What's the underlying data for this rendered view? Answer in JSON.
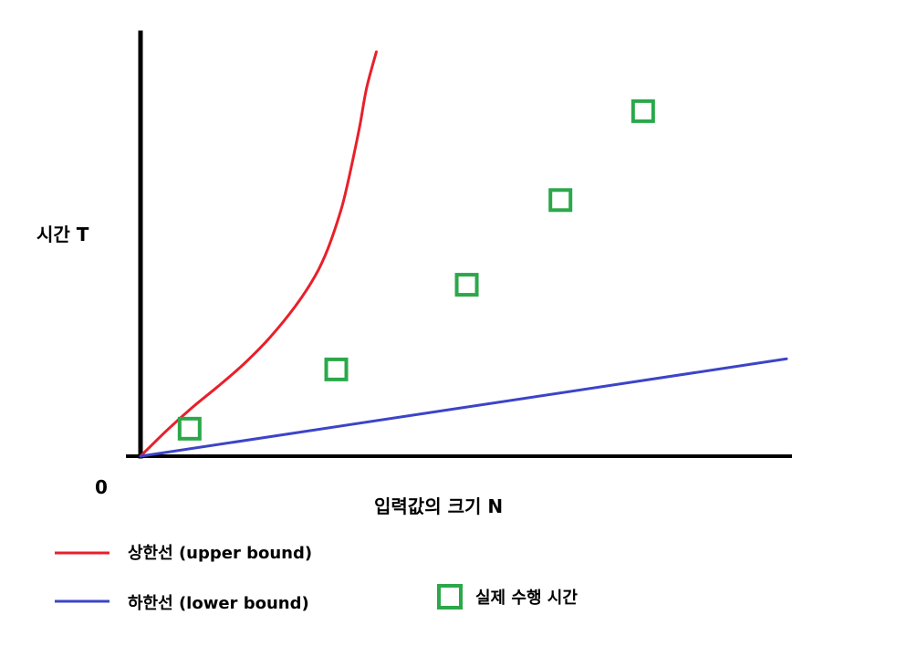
{
  "chart_data": {
    "type": "line",
    "title": "",
    "ylabel": "시간 T",
    "xlabel": "입력값의 크기 N",
    "origin_label": "0",
    "xlim": [
      0,
      100
    ],
    "ylim": [
      0,
      100
    ],
    "grid": false,
    "series": [
      {
        "name": "상한선 (upper bound)",
        "kind": "line",
        "color": "#e8202a",
        "x": [
          0,
          4,
          8,
          12,
          16,
          20,
          24,
          27,
          29,
          31,
          32,
          33,
          34,
          35,
          36.5
        ],
        "y": [
          0,
          6,
          11.5,
          16.5,
          21.8,
          28,
          35.5,
          42.5,
          49,
          58,
          64,
          71,
          78.5,
          87,
          95.5
        ]
      },
      {
        "name": "하한선 (lower bound)",
        "kind": "line",
        "color": "#3c44c8",
        "x": [
          0,
          100
        ],
        "y": [
          0,
          23
        ]
      },
      {
        "name": "실제 수행 시간",
        "kind": "scatter",
        "marker": "square-outline",
        "color": "#2ba84a",
        "x": [
          7.6,
          30.3,
          50.5,
          65.0,
          77.8
        ],
        "y": [
          6.5,
          20.5,
          40.5,
          60.5,
          81.5
        ]
      }
    ],
    "legend": {
      "placement": "bottom-left",
      "items": [
        {
          "label": "상한선 (upper bound)",
          "marker": "line",
          "color": "#e8202a"
        },
        {
          "label": "하한선 (lower bound)",
          "marker": "line",
          "color": "#3c44c8"
        },
        {
          "label": "실제 수행 시간",
          "marker": "square-outline",
          "color": "#2ba84a"
        }
      ]
    }
  }
}
